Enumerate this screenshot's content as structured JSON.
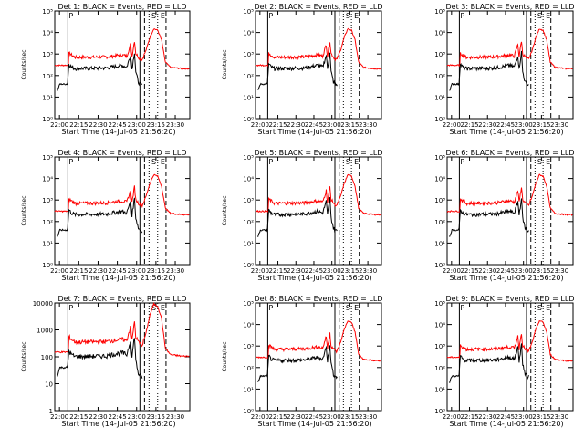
{
  "chart_data": {
    "type": "line",
    "layout": "3x3 grid of log-scale light-curve panels",
    "xlabel": "Start Time (14-Jul-05 21:56:20)",
    "xticks": [
      "22:00",
      "22:15",
      "22:30",
      "22:45",
      "23:00",
      "23:15",
      "23:30"
    ],
    "xlim_minutes_after_start": [
      0,
      105
    ],
    "yscale": "log",
    "colors": {
      "events": "#000000",
      "lld": "#ff0000",
      "background": "#ffffff"
    },
    "interval_markers": [
      "P",
      "S",
      "E"
    ],
    "panels": [
      {
        "title": "Det 1: BLACK = Events, RED = LLD",
        "ylabel": "Counts/sec",
        "ylim": [
          1,
          100000
        ],
        "yticks": [
          "10⁰",
          "10¹",
          "10²",
          "10³",
          "10⁴",
          "10⁵"
        ],
        "evt_base": 40,
        "evt_pre": 40,
        "lld_base": 300,
        "lld_quiet": 700,
        "evt_quiet": 250,
        "lld_peak": 15000
      },
      {
        "title": "Det 2: BLACK = Events, RED = LLD",
        "ylabel": "Counts/sec",
        "ylim": [
          1,
          100000
        ],
        "yticks": [
          "10⁰",
          "10¹",
          "10²",
          "10³",
          "10⁴",
          "10⁵"
        ],
        "evt_base": 40,
        "evt_pre": 40,
        "lld_base": 300,
        "lld_quiet": 700,
        "evt_quiet": 250,
        "lld_peak": 15000
      },
      {
        "title": "Det 3: BLACK = Events, RED = LLD",
        "ylabel": "",
        "ylim": [
          1,
          100000
        ],
        "yticks": [
          "10⁰",
          "10¹",
          "10²",
          "10³",
          "10⁴",
          "10⁵"
        ],
        "evt_base": 40,
        "evt_pre": 40,
        "lld_base": 300,
        "lld_quiet": 700,
        "evt_quiet": 250,
        "lld_peak": 15000
      },
      {
        "title": "Det 4: BLACK = Events, RED = LLD",
        "ylabel": "Counts/sec",
        "ylim": [
          1,
          100000
        ],
        "yticks": [
          "10⁰",
          "10¹",
          "10²",
          "10³",
          "10⁴",
          "10⁵"
        ],
        "evt_base": 40,
        "evt_pre": 40,
        "lld_base": 300,
        "lld_quiet": 700,
        "evt_quiet": 250,
        "lld_peak": 15000
      },
      {
        "title": "Det 5: BLACK = Events, RED = LLD",
        "ylabel": "Counts/sec",
        "ylim": [
          1,
          100000
        ],
        "yticks": [
          "10⁰",
          "10¹",
          "10²",
          "10³",
          "10⁴",
          "10⁵"
        ],
        "evt_base": 40,
        "evt_pre": 40,
        "lld_base": 300,
        "lld_quiet": 700,
        "evt_quiet": 250,
        "lld_peak": 15000
      },
      {
        "title": "Det 6: BLACK = Events, RED = LLD",
        "ylabel": "",
        "ylim": [
          1,
          100000
        ],
        "yticks": [
          "10⁰",
          "10¹",
          "10²",
          "10³",
          "10⁴",
          "10⁵"
        ],
        "evt_base": 40,
        "evt_pre": 40,
        "lld_base": 300,
        "lld_quiet": 700,
        "evt_quiet": 250,
        "lld_peak": 15000
      },
      {
        "title": "Det 7: BLACK = Events, RED = LLD",
        "ylabel": "Counts/sec",
        "ylim": [
          1,
          10000
        ],
        "yticks": [
          "1",
          "10",
          "100",
          "1000",
          "10000"
        ],
        "evt_base": 40,
        "evt_pre": 40,
        "lld_base": 150,
        "lld_quiet": 350,
        "evt_quiet": 120,
        "lld_peak": 9000
      },
      {
        "title": "Det 8: BLACK = Events, RED = LLD",
        "ylabel": "Counts/sec",
        "ylim": [
          1,
          100000
        ],
        "yticks": [
          "10⁰",
          "10¹",
          "10²",
          "10³",
          "10⁴",
          "10⁵"
        ],
        "evt_base": 40,
        "evt_pre": 40,
        "lld_base": 300,
        "lld_quiet": 700,
        "evt_quiet": 250,
        "lld_peak": 15000
      },
      {
        "title": "Det 9: BLACK = Events, RED = LLD",
        "ylabel": "",
        "ylim": [
          1,
          100000
        ],
        "yticks": [
          "10⁰",
          "10¹",
          "10²",
          "10³",
          "10⁴",
          "10⁵"
        ],
        "evt_base": 40,
        "evt_pre": 40,
        "lld_base": 300,
        "lld_quiet": 700,
        "evt_quiet": 250,
        "lld_peak": 15000
      }
    ]
  }
}
